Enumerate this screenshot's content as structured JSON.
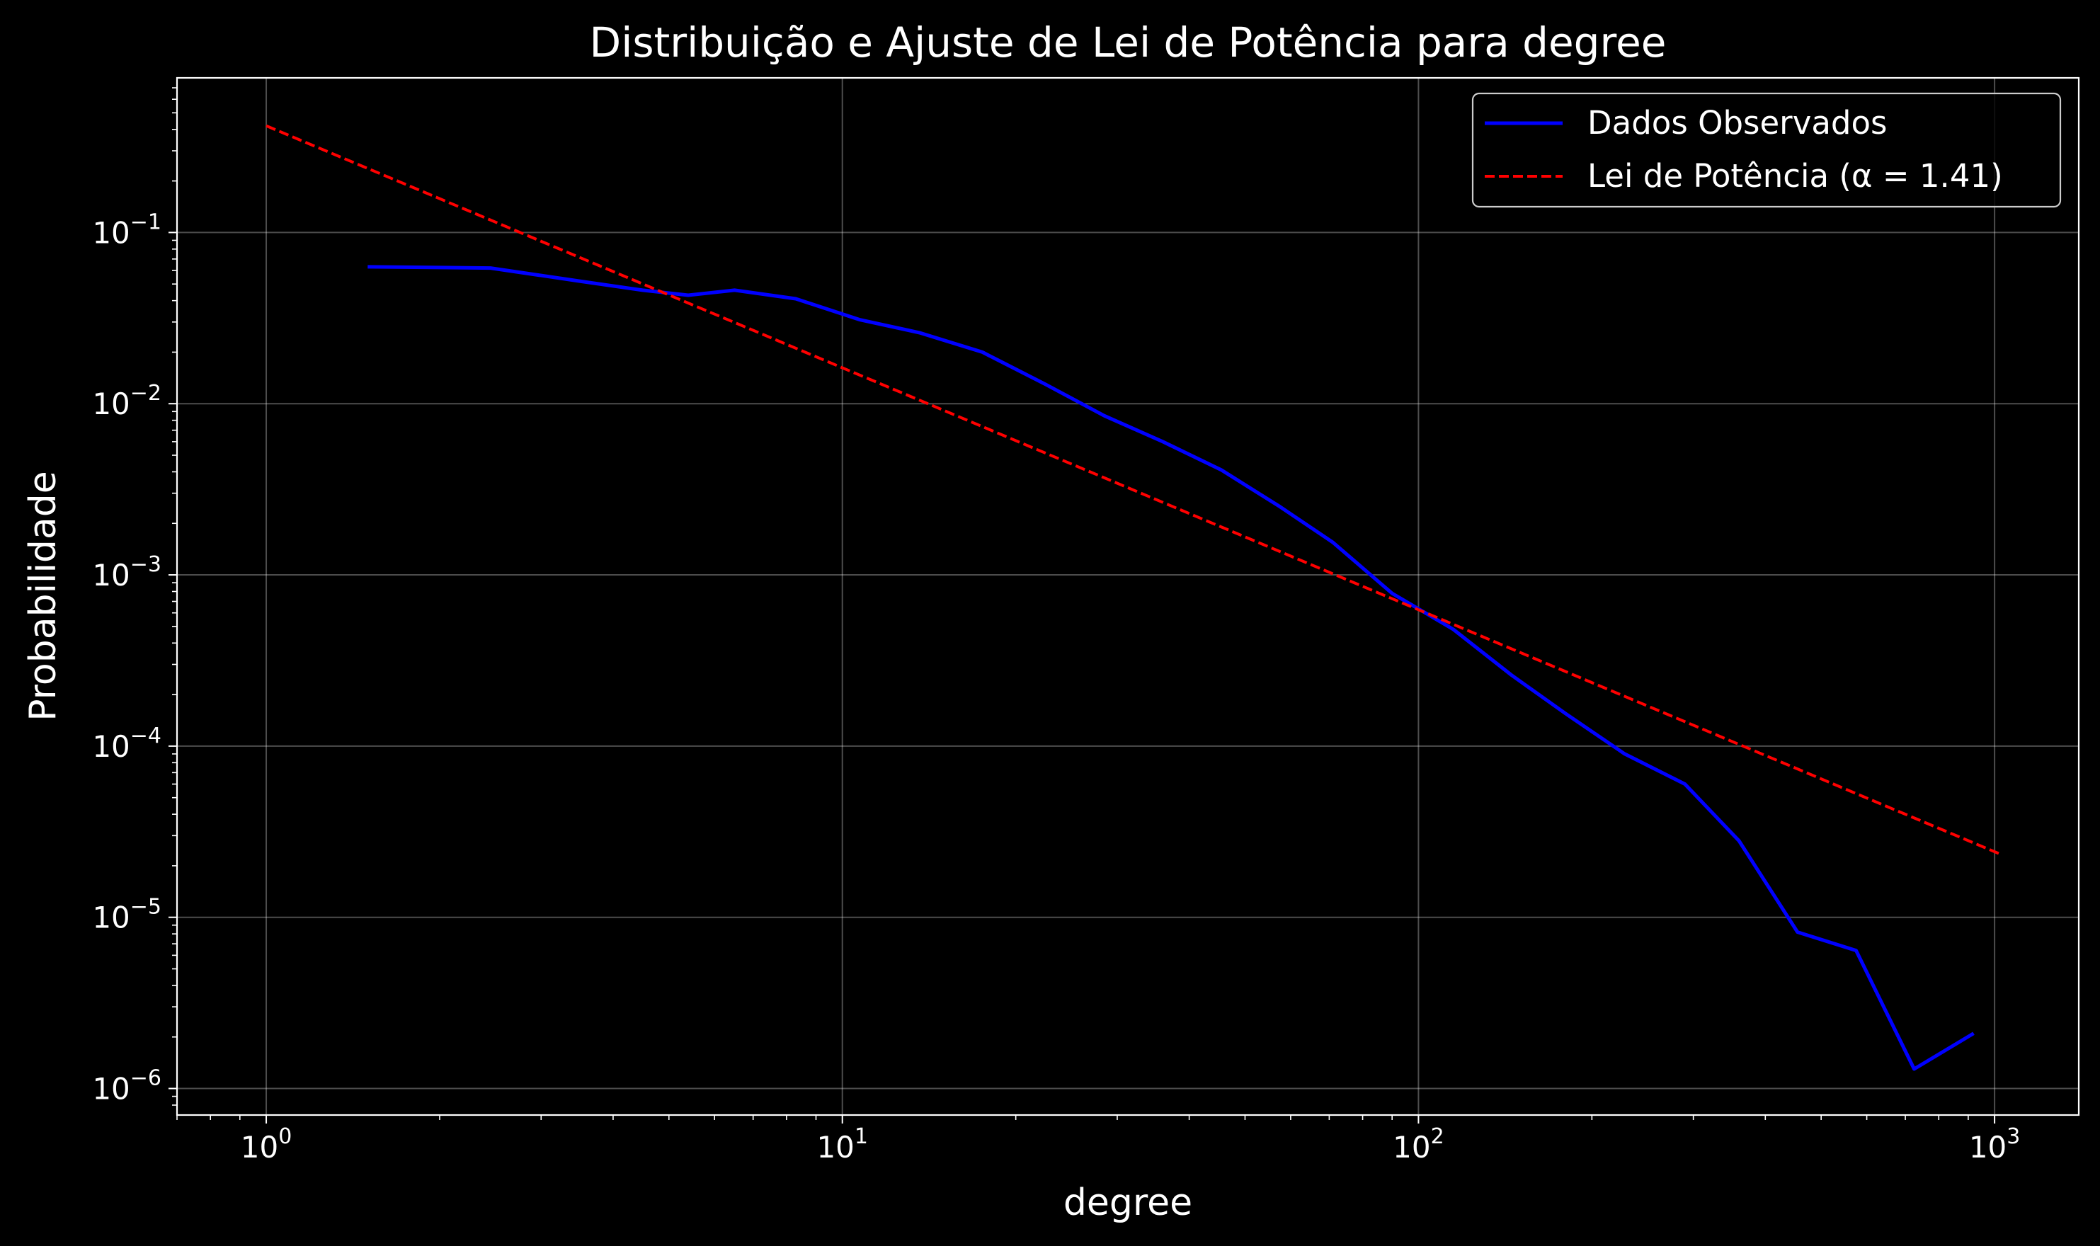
{
  "chart_data": {
    "type": "line",
    "title": "Distribuição e Ajuste de Lei de Potência para degree",
    "xlabel": "degree",
    "ylabel": "Probabilidade",
    "xscale": "log",
    "yscale": "log",
    "xlim": [
      0.7,
      1400
    ],
    "ylim": [
      7e-07,
      0.8
    ],
    "grid": true,
    "legend_position": "top-right",
    "x_ticks": [
      {
        "base": "10",
        "exp": "0",
        "value": 1
      },
      {
        "base": "10",
        "exp": "1",
        "value": 10
      },
      {
        "base": "10",
        "exp": "2",
        "value": 100
      },
      {
        "base": "10",
        "exp": "3",
        "value": 1000
      }
    ],
    "y_ticks": [
      {
        "base": "10",
        "exp": "−1",
        "value": 0.1
      },
      {
        "base": "10",
        "exp": "−2",
        "value": 0.01
      },
      {
        "base": "10",
        "exp": "−3",
        "value": 0.001
      },
      {
        "base": "10",
        "exp": "−4",
        "value": 0.0001
      },
      {
        "base": "10",
        "exp": "−5",
        "value": 1e-05
      },
      {
        "base": "10",
        "exp": "−6",
        "value": 1e-06
      }
    ],
    "series": [
      {
        "name": "Dados Observados",
        "color": "#0000ff",
        "style": "solid",
        "x": [
          1.5,
          2.45,
          3.5,
          4.5,
          5.4,
          6.5,
          8.3,
          10.7,
          13.6,
          17.5,
          22.5,
          28.5,
          36.0,
          45.5,
          57.5,
          71.0,
          90.0,
          115.0,
          145.0,
          180.0,
          228.0,
          290.0,
          360.0,
          455.0,
          575.0,
          725.0,
          920.0
        ],
        "y": [
          0.063,
          0.062,
          0.052,
          0.046,
          0.043,
          0.046,
          0.041,
          0.031,
          0.026,
          0.02,
          0.013,
          0.0085,
          0.006,
          0.0041,
          0.0025,
          0.00155,
          0.00078,
          0.00048,
          0.00026,
          0.000155,
          9e-05,
          6e-05,
          2.8e-05,
          8.2e-06,
          6.4e-06,
          1.3e-06,
          2.1e-06
        ]
      },
      {
        "name": "Lei de Potência (α = 1.41)",
        "color": "#ff0000",
        "style": "dashed",
        "x": [
          1,
          1020
        ],
        "y": [
          0.42,
          2.35e-05
        ]
      }
    ]
  }
}
